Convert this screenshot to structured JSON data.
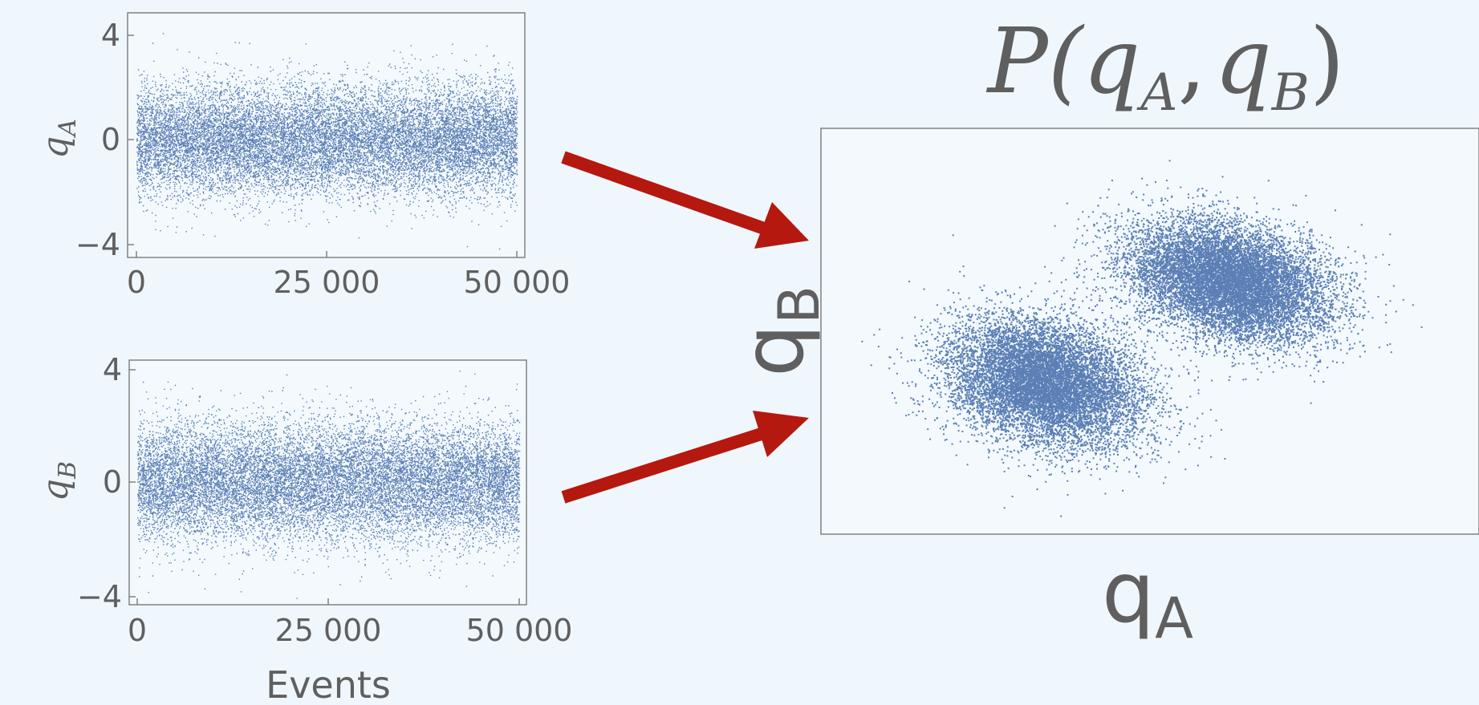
{
  "colors": {
    "background": "#eff7fc",
    "plot_background": "#f3f9fd",
    "frame": "#7a7a7a",
    "text": "#5f5f5f",
    "points": "#5b7fb5",
    "arrow": "#b5180f"
  },
  "arrows": {
    "color": "#b5180f",
    "count": 2
  },
  "chart_data": [
    {
      "type": "scatter",
      "title": "",
      "xlabel": "",
      "ylabel_base": "q",
      "ylabel_sub": "A",
      "xlim": [
        0,
        50000
      ],
      "ylim": [
        -4.3,
        4.8
      ],
      "xticks": [
        0,
        25000,
        50000
      ],
      "xtick_labels": [
        "0",
        "25 000",
        "50 000"
      ],
      "yticks": [
        -4,
        0,
        4
      ],
      "ytick_labels": [
        "−4",
        "0",
        "4"
      ],
      "grid": false,
      "legend": "none",
      "series": [
        {
          "distribution": "gaussian time series",
          "n_events": 50000,
          "mean": 0,
          "std": 1.05
        }
      ]
    },
    {
      "type": "scatter",
      "title": "",
      "xlabel": "Events",
      "ylabel_base": "q",
      "ylabel_sub": "B",
      "xlim": [
        0,
        50000
      ],
      "ylim": [
        -4.3,
        4.8
      ],
      "xticks": [
        0,
        25000,
        50000
      ],
      "xtick_labels": [
        "0",
        "25 000",
        "50 000"
      ],
      "yticks": [
        -4,
        0,
        4
      ],
      "ytick_labels": [
        "−4",
        "0",
        "4"
      ],
      "grid": false,
      "legend": "none",
      "series": [
        {
          "distribution": "gaussian time series",
          "n_events": 50000,
          "mean": 0,
          "std": 1.05
        }
      ]
    },
    {
      "type": "scatter",
      "title": {
        "prefix": "P(",
        "a_base": "q",
        "a_sub": "A",
        "sep": ",",
        "b_base": "q",
        "b_sub": "B",
        "suffix": ")"
      },
      "xlabel_base": "q",
      "xlabel_sub": "A",
      "ylabel_base": "q",
      "ylabel_sub": "B",
      "xticks": [],
      "yticks": [],
      "xlim": [
        -3.6,
        3.6
      ],
      "ylim": [
        -2.6,
        2.6
      ],
      "grid": false,
      "legend": "none",
      "series": [
        {
          "name": "",
          "cluster": "lower-left",
          "center": [
            -1.15,
            -0.65
          ],
          "std": [
            0.55,
            0.38
          ],
          "rotation_deg": -22,
          "n_points": 30000
        },
        {
          "name": "",
          "cluster": "upper-right",
          "center": [
            0.85,
            0.65
          ],
          "std": [
            0.57,
            0.35
          ],
          "rotation_deg": -20,
          "n_points": 32000
        }
      ]
    }
  ]
}
